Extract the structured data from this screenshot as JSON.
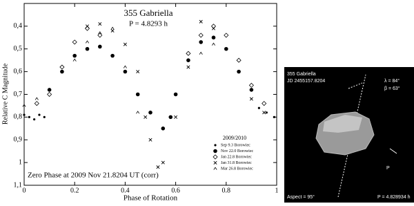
{
  "chart_data": {
    "type": "scatter",
    "title": "355 Gabriella",
    "subtitle": "P = 4.8293 h",
    "x_label": "Phase of Rotation",
    "y_label": "Relative C Magnitude",
    "annotation": "Zero Phase at 2009 Nov 21.8204 UT (corr)",
    "legend_title": "2009/2010",
    "xlim": [
      0,
      1
    ],
    "ylim": [
      0.3,
      1.1
    ],
    "y_inverted": true,
    "xticks": [
      0,
      0.2,
      0.4,
      0.6,
      0.8,
      1
    ],
    "yticks": [
      {
        "value": 0.4,
        "label": "0,4"
      },
      {
        "value": 0.5,
        "label": "0,5"
      },
      {
        "value": 0.6,
        "label": "0,6"
      },
      {
        "value": 0.7,
        "label": "0,7"
      },
      {
        "value": 0.8,
        "label": "0,8"
      },
      {
        "value": 0.9,
        "label": "0,9"
      },
      1,
      {
        "value": 1.1,
        "label": "1,1"
      }
    ],
    "series": [
      {
        "name": "Sep 9.3 Borowiec",
        "marker": "dot",
        "color": "#000000",
        "x": [
          0.0,
          0.02,
          0.04,
          0.06,
          0.08,
          0.93,
          0.96,
          0.99
        ],
        "values": [
          0.79,
          0.8,
          0.81,
          0.79,
          0.8,
          0.76,
          0.78,
          0.8
        ]
      },
      {
        "name": "Nov 22.0 Borowiec",
        "marker": "circle",
        "color": "#000000",
        "x": [
          0.1,
          0.15,
          0.2,
          0.25,
          0.3,
          0.35,
          0.4,
          0.45,
          0.5,
          0.55,
          0.58,
          0.6,
          0.65,
          0.7,
          0.75,
          0.8,
          0.85,
          0.9
        ],
        "values": [
          0.68,
          0.6,
          0.53,
          0.5,
          0.49,
          0.53,
          0.6,
          0.7,
          0.78,
          0.85,
          0.8,
          0.7,
          0.55,
          0.47,
          0.45,
          0.5,
          0.6,
          0.68
        ]
      },
      {
        "name": "Jan 22.8 Borowiec",
        "marker": "diamond",
        "color": "#000000",
        "x": [
          0.05,
          0.1,
          0.15,
          0.2,
          0.25,
          0.3,
          0.65,
          0.7,
          0.75,
          0.8,
          0.85,
          0.9,
          0.95
        ],
        "values": [
          0.74,
          0.7,
          0.58,
          0.47,
          0.41,
          0.44,
          0.52,
          0.44,
          0.4,
          0.44,
          0.55,
          0.66,
          0.74
        ]
      },
      {
        "name": "Jan 31.8 Borowiec",
        "marker": "cross",
        "color": "#000000",
        "x": [
          0.25,
          0.3,
          0.35,
          0.4,
          0.45,
          0.48,
          0.5,
          0.53,
          0.55,
          0.6,
          0.65,
          0.7,
          0.75,
          0.9,
          0.95
        ],
        "values": [
          0.4,
          0.39,
          0.42,
          0.48,
          0.6,
          0.8,
          0.9,
          1.02,
          1.0,
          0.8,
          0.58,
          0.38,
          0.41,
          0.72,
          0.78
        ]
      },
      {
        "name": "Mar 26.8 Borowiec",
        "marker": "caret",
        "color": "#000000",
        "x": [
          0.0,
          0.05,
          0.1,
          0.15,
          0.2,
          0.25,
          0.3,
          0.35,
          0.4,
          0.45,
          0.7,
          0.75,
          0.8
        ],
        "values": [
          0.75,
          0.72,
          0.68,
          0.6,
          0.55,
          0.47,
          0.43,
          0.41,
          0.58,
          0.78,
          0.52,
          0.48,
          0.5
        ]
      }
    ]
  },
  "model": {
    "name": "355 Gabriella",
    "jd": "JD 2455157.8204",
    "lambda": "λ = 84°",
    "beta": "β = 63°",
    "pole": "P",
    "aspect": "Aspect = 95°",
    "period": "P = 4.828934 h"
  }
}
